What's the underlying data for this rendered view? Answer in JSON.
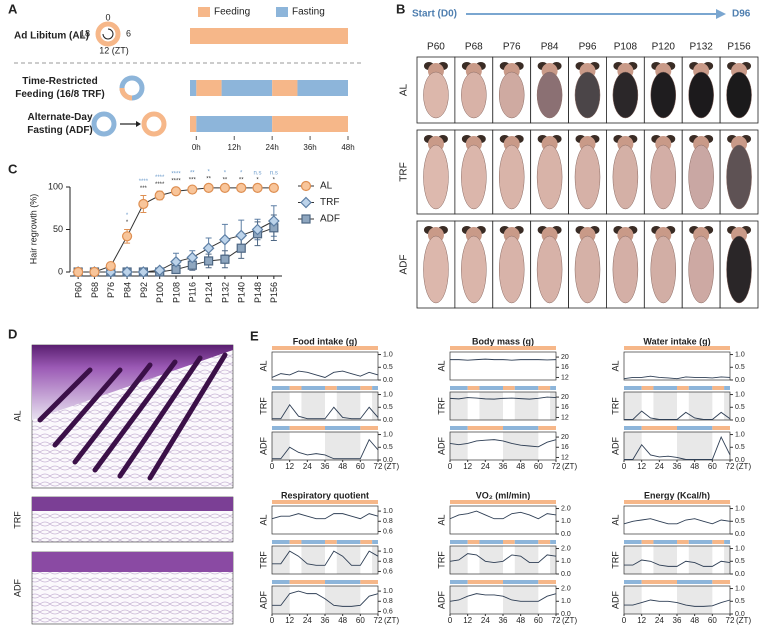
{
  "panel_labels": [
    "A",
    "B",
    "C",
    "D",
    "E"
  ],
  "panel_a": {
    "legend": [
      {
        "name": "Feeding",
        "color": "#f6b789"
      },
      {
        "name": "Fasting",
        "color": "#8db5da"
      }
    ],
    "clock_labels": [
      "0",
      "6",
      "12 (ZT)",
      "18"
    ],
    "rows": [
      {
        "label": [
          "Ad Libitum (AL)"
        ],
        "schedule": [
          {
            "start": -2,
            "end": 48,
            "color": "#f6b789"
          }
        ]
      },
      {
        "label": [
          "Time-Restricted",
          "Feeding (16/8 TRF)"
        ],
        "schedule": [
          {
            "start": -2,
            "end": 0,
            "color": "#8db5da"
          },
          {
            "start": 0,
            "end": 8,
            "color": "#f6b789"
          },
          {
            "start": 8,
            "end": 24,
            "color": "#8db5da"
          },
          {
            "start": 24,
            "end": 32,
            "color": "#f6b789"
          },
          {
            "start": 32,
            "end": 48,
            "color": "#8db5da"
          }
        ]
      },
      {
        "label": [
          "Alternate-Day",
          "Fasting (ADF)"
        ],
        "schedule": [
          {
            "start": -2,
            "end": 0,
            "color": "#f6b789"
          },
          {
            "start": 0,
            "end": 24,
            "color": "#8db5da"
          },
          {
            "start": 24,
            "end": 48,
            "color": "#f6b789"
          }
        ]
      }
    ],
    "xlim": [
      -2,
      48
    ],
    "xticks": [
      {
        "value": 0,
        "label": "0h"
      },
      {
        "value": 12,
        "label": "12h"
      },
      {
        "value": 24,
        "label": "24h"
      },
      {
        "value": 36,
        "label": "36h"
      },
      {
        "value": 48,
        "label": "48h"
      }
    ]
  },
  "panel_b": {
    "start": "Start (D0)",
    "end": "D96",
    "columns": [
      "P60",
      "P68",
      "P76",
      "P84",
      "P96",
      "P108",
      "P120",
      "P132",
      "P156"
    ],
    "rows": [
      {
        "label": "AL",
        "fur": [
          "#dcb7ab",
          "#d8b2a7",
          "#cfaaa1",
          "#8b7073",
          "#4b4548",
          "#2b2729",
          "#1f1d1f",
          "#1c1a1c",
          "#1b1a1b"
        ]
      },
      {
        "label": "TRF",
        "fur": [
          "#ddb9ae",
          "#dbb6ab",
          "#d9b4a9",
          "#d8b3a8",
          "#d6b1a7",
          "#d4b0a6",
          "#d3aea6",
          "#c9a7a3",
          "#5e5254"
        ]
      },
      {
        "label": "ADF",
        "fur": [
          "#dcb7ac",
          "#dab5aa",
          "#d8b3a9",
          "#d7b2a8",
          "#d5b1a7",
          "#d4afa6",
          "#d2aea5",
          "#cda9a3",
          "#2a2628"
        ]
      }
    ]
  },
  "chart_data": [
    {
      "type": "line",
      "ylabel": "Hair regrowth (%)",
      "categories": [
        "P60",
        "P68",
        "P76",
        "P84",
        "P92",
        "P100",
        "P108",
        "P116",
        "P124",
        "P132",
        "P140",
        "P148",
        "P156"
      ],
      "ylim": [
        0,
        100
      ],
      "yticks": [
        0,
        50,
        100
      ],
      "legend": "right",
      "series": [
        {
          "name": "AL",
          "color": "#f8c59a",
          "edge": "#de8f52",
          "marker": "circle",
          "values": [
            0,
            0,
            7,
            42,
            80,
            90,
            95,
            97,
            99,
            99,
            99,
            99,
            99
          ],
          "errors": [
            0,
            0,
            2,
            8,
            10,
            5,
            4,
            3,
            2,
            1,
            1,
            1,
            1
          ]
        },
        {
          "name": "TRF",
          "color": "#bcd3ea",
          "edge": "#5d7fa5",
          "marker": "diamond",
          "values": [
            0,
            0,
            0,
            0,
            0,
            2,
            12,
            17,
            28,
            38,
            43,
            50,
            60
          ],
          "errors": [
            0,
            0,
            0,
            0,
            0,
            2,
            10,
            8,
            12,
            18,
            18,
            12,
            18
          ]
        },
        {
          "name": "ADF",
          "color": "#8ea6bf",
          "edge": "#4e6784",
          "marker": "square",
          "values": [
            0,
            0,
            0,
            0,
            0,
            0,
            3,
            8,
            13,
            15,
            28,
            45,
            52
          ],
          "errors": [
            0,
            0,
            0,
            0,
            0,
            0,
            3,
            6,
            8,
            10,
            12,
            14,
            15
          ]
        }
      ],
      "annotations": [
        {
          "color": "#6d9ccc",
          "labels": [
            null,
            null,
            null,
            "*",
            "****",
            "****",
            "****",
            "**",
            "*",
            "*",
            "*",
            "n.s",
            "n.s"
          ]
        },
        {
          "color": "#333333",
          "labels": [
            null,
            null,
            null,
            "*",
            "***",
            "****",
            "****",
            "***",
            "**",
            "**",
            "**",
            "*",
            "*"
          ]
        }
      ]
    },
    {
      "type": "line",
      "title": "Food intake (g)",
      "x": [
        0,
        6,
        12,
        18,
        24,
        30,
        36,
        42,
        48,
        54,
        60,
        66,
        72
      ],
      "xlim": [
        0,
        72
      ],
      "xticks": [
        0,
        12,
        24,
        36,
        48,
        60,
        72
      ],
      "xlabel": "(ZT)",
      "ylim": [
        0,
        1.1
      ],
      "yticks": [
        {
          "value": 0,
          "label": "0.0"
        },
        0.5,
        {
          "value": 1,
          "label": "1.0"
        }
      ],
      "color": "#2f3f55",
      "panels": [
        {
          "label": "AL",
          "values": [
            0.1,
            0.25,
            0.2,
            0.35,
            0.3,
            0.2,
            0.1,
            0.3,
            0.35,
            0.25,
            0.15,
            0.3,
            0.2
          ]
        },
        {
          "label": "TRF",
          "values": [
            0.05,
            0.05,
            0.6,
            0.15,
            0.05,
            0.05,
            0.05,
            0.5,
            0.1,
            0.05,
            0.05,
            0.5,
            0.1
          ]
        },
        {
          "label": "ADF",
          "values": [
            0.05,
            0.05,
            0.5,
            0.3,
            0.2,
            0.25,
            0.2,
            0.05,
            0.05,
            0.05,
            0.05,
            0.8,
            0.4
          ]
        }
      ]
    },
    {
      "type": "line",
      "title": "Body mass (g)",
      "x": [
        0,
        6,
        12,
        18,
        24,
        30,
        36,
        42,
        48,
        54,
        60,
        66,
        72
      ],
      "xlim": [
        0,
        72
      ],
      "xticks": [
        0,
        12,
        24,
        36,
        48,
        60,
        72
      ],
      "xlabel": "(ZT)",
      "ylim": [
        11,
        22
      ],
      "yticks": [
        12,
        16,
        20
      ],
      "color": "#2f3f55",
      "panels": [
        {
          "label": "AL",
          "values": [
            19,
            19,
            18.8,
            19,
            19.2,
            19,
            19,
            18.8,
            19,
            19,
            19,
            18.9,
            19
          ]
        },
        {
          "label": "TRF",
          "values": [
            19.5,
            19.3,
            19.8,
            19.6,
            19.3,
            19.2,
            19.5,
            19.6,
            19.4,
            19.2,
            19.5,
            20,
            19.8
          ]
        },
        {
          "label": "ADF",
          "values": [
            17.5,
            17,
            17.5,
            18.5,
            18.8,
            19,
            18.5,
            17.5,
            16.8,
            16.5,
            16.2,
            18,
            19
          ]
        }
      ]
    },
    {
      "type": "line",
      "title": "Water intake (g)",
      "x": [
        0,
        6,
        12,
        18,
        24,
        30,
        36,
        42,
        48,
        54,
        60,
        66,
        72
      ],
      "xlim": [
        0,
        72
      ],
      "xticks": [
        0,
        12,
        24,
        36,
        48,
        60,
        72
      ],
      "xlabel": "(ZT)",
      "ylim": [
        0,
        1.1
      ],
      "yticks": [
        {
          "value": 0,
          "label": "0.0"
        },
        0.5,
        {
          "value": 1,
          "label": "1.0"
        }
      ],
      "color": "#2f3f55",
      "panels": [
        {
          "label": "AL",
          "values": [
            0.05,
            0.1,
            0.1,
            0.15,
            0.1,
            0.08,
            0.05,
            0.12,
            0.1,
            0.1,
            0.08,
            0.12,
            0.1
          ]
        },
        {
          "label": "TRF",
          "values": [
            0.02,
            0.02,
            0.35,
            0.08,
            0.02,
            0.02,
            0.02,
            0.3,
            0.08,
            0.02,
            0.02,
            0.3,
            0.05
          ]
        },
        {
          "label": "ADF",
          "values": [
            0.02,
            0.02,
            0.6,
            0.2,
            0.12,
            0.15,
            0.1,
            0.02,
            0.02,
            0.02,
            0.02,
            0.9,
            0.2
          ]
        }
      ]
    },
    {
      "type": "line",
      "title": "Respiratory quotient",
      "x": [
        0,
        6,
        12,
        18,
        24,
        30,
        36,
        42,
        48,
        54,
        60,
        66,
        72
      ],
      "xlim": [
        0,
        72
      ],
      "xticks": [
        0,
        12,
        24,
        36,
        48,
        60,
        72
      ],
      "xlabel": "(ZT)",
      "ylim": [
        0.55,
        1.1
      ],
      "yticks": [
        0.6,
        0.8,
        {
          "value": 1,
          "label": "1.0"
        }
      ],
      "color": "#2f3f55",
      "panels": [
        {
          "label": "AL",
          "values": [
            0.85,
            0.9,
            0.9,
            0.95,
            0.9,
            0.85,
            0.85,
            0.95,
            0.95,
            0.9,
            0.85,
            0.95,
            0.9
          ]
        },
        {
          "label": "TRF",
          "values": [
            0.75,
            0.75,
            1.0,
            0.9,
            0.75,
            0.72,
            0.72,
            1.0,
            0.9,
            0.72,
            0.72,
            1.0,
            0.9
          ]
        },
        {
          "label": "ADF",
          "values": [
            0.72,
            0.72,
            0.95,
            1.0,
            0.95,
            0.95,
            0.85,
            0.72,
            0.7,
            0.7,
            0.72,
            0.9,
            0.95
          ]
        }
      ]
    },
    {
      "type": "line",
      "title": "VO₂ (ml/min)",
      "x": [
        0,
        6,
        12,
        18,
        24,
        30,
        36,
        42,
        48,
        54,
        60,
        66,
        72
      ],
      "xlim": [
        0,
        72
      ],
      "xticks": [
        0,
        12,
        24,
        36,
        48,
        60,
        72
      ],
      "xlabel": "(ZT)",
      "ylim": [
        0,
        2.2
      ],
      "yticks": [
        {
          "value": 0,
          "label": "0.0"
        },
        {
          "value": 1,
          "label": "1.0"
        },
        {
          "value": 2,
          "label": "2.0"
        }
      ],
      "color": "#2f3f55",
      "panels": [
        {
          "label": "AL",
          "values": [
            1.2,
            1.5,
            1.6,
            1.8,
            1.5,
            1.2,
            1.2,
            1.6,
            1.7,
            1.5,
            1.2,
            1.6,
            1.5
          ]
        },
        {
          "label": "TRF",
          "values": [
            1.0,
            1.1,
            1.6,
            1.5,
            1.0,
            0.9,
            1.0,
            1.5,
            1.4,
            0.9,
            0.9,
            1.5,
            1.4
          ]
        },
        {
          "label": "ADF",
          "values": [
            1.0,
            1.1,
            1.4,
            1.6,
            1.5,
            1.5,
            1.4,
            1.1,
            1.0,
            1.0,
            1.0,
            1.4,
            1.6
          ]
        }
      ]
    },
    {
      "type": "line",
      "title": "Energy (Kcal/h)",
      "x": [
        0,
        6,
        12,
        18,
        24,
        30,
        36,
        42,
        48,
        54,
        60,
        66,
        72
      ],
      "xlim": [
        0,
        72
      ],
      "xticks": [
        0,
        12,
        24,
        36,
        48,
        60,
        72
      ],
      "xlabel": "(ZT)",
      "ylim": [
        0,
        1.1
      ],
      "yticks": [
        {
          "value": 0,
          "label": "0.0"
        },
        0.5,
        {
          "value": 1,
          "label": "1.0"
        }
      ],
      "color": "#2f3f55",
      "panels": [
        {
          "label": "AL",
          "values": [
            0.4,
            0.5,
            0.55,
            0.6,
            0.5,
            0.4,
            0.4,
            0.55,
            0.6,
            0.5,
            0.4,
            0.55,
            0.5
          ]
        },
        {
          "label": "TRF",
          "values": [
            0.35,
            0.35,
            0.55,
            0.5,
            0.35,
            0.3,
            0.3,
            0.5,
            0.45,
            0.3,
            0.3,
            0.5,
            0.45
          ]
        },
        {
          "label": "ADF",
          "values": [
            0.35,
            0.35,
            0.45,
            0.55,
            0.5,
            0.5,
            0.45,
            0.35,
            0.3,
            0.3,
            0.32,
            0.45,
            0.55
          ]
        }
      ]
    }
  ],
  "panel_d": {
    "rows": [
      "AL",
      "TRF",
      "ADF"
    ]
  },
  "panel_e": {
    "schedule": [
      [
        {
          "start": 0,
          "end": 72,
          "color": "#f6b789"
        }
      ],
      [
        {
          "start": 0,
          "end": 12,
          "color": "#8db5da"
        },
        {
          "start": 12,
          "end": 20,
          "color": "#f6b789"
        },
        {
          "start": 20,
          "end": 36,
          "color": "#8db5da"
        },
        {
          "start": 36,
          "end": 44,
          "color": "#f6b789"
        },
        {
          "start": 44,
          "end": 60,
          "color": "#8db5da"
        },
        {
          "start": 60,
          "end": 68,
          "color": "#f6b789"
        },
        {
          "start": 68,
          "end": 72,
          "color": "#8db5da"
        }
      ],
      [
        {
          "start": 0,
          "end": 12,
          "color": "#8db5da"
        },
        {
          "start": 12,
          "end": 36,
          "color": "#f6b789"
        },
        {
          "start": 36,
          "end": 60,
          "color": "#8db5da"
        },
        {
          "start": 60,
          "end": 72,
          "color": "#f6b789"
        }
      ]
    ]
  }
}
